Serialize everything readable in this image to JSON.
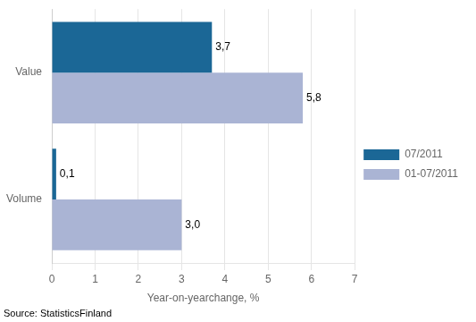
{
  "chart_data": {
    "type": "bar",
    "orientation": "horizontal",
    "categories": [
      "Value",
      "Volume"
    ],
    "series": [
      {
        "name": "07/2011",
        "color": "#1b6796",
        "values": [
          3.7,
          0.1
        ],
        "value_labels": [
          "3,7",
          "0,1"
        ]
      },
      {
        "name": "01-07/2011",
        "color": "#aab4d4",
        "values": [
          5.8,
          3.0
        ],
        "value_labels": [
          "5,8",
          "3,0"
        ]
      }
    ],
    "xlabel": "Year-on-yearchange, %",
    "xlim": [
      0,
      7
    ],
    "xticks": [
      0,
      1,
      2,
      3,
      4,
      5,
      6,
      7
    ],
    "source": "Source: StatisticsFinland",
    "grid": true,
    "legend": "right",
    "data_labels": true
  }
}
